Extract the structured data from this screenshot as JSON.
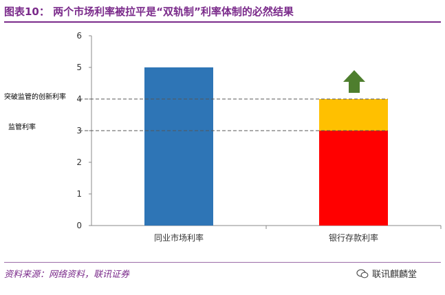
{
  "header": {
    "title": "图表10： 两个市场利率被拉平是“双轨制”利率体制的必然结果"
  },
  "footer": {
    "source": "资料来源：网络资料，联讯证券",
    "watermark": "联讯麒麟堂"
  },
  "colors": {
    "title": "#7a2a8a",
    "bar_market": "#2e75b6",
    "bar_deposit_base": "#ff0000",
    "bar_deposit_top": "#ffc000",
    "arrow": "#4e7e2e"
  },
  "chart_data": {
    "type": "bar",
    "categories": [
      "同业市场利率",
      "银行存款利率"
    ],
    "series": [
      {
        "values": [
          5,
          3
        ]
      },
      {
        "values": [
          0,
          1
        ]
      }
    ],
    "stacked": true,
    "ylim": [
      0,
      6
    ],
    "yticks": [
      0,
      1,
      2,
      3,
      4,
      5,
      6
    ],
    "title": "",
    "xlabel": "",
    "ylabel": "",
    "reference_lines": [
      {
        "label": "突破监管的创新利率",
        "y": 4
      },
      {
        "label": "监管利率",
        "y": 3
      }
    ],
    "annotation": "up-arrow",
    "grid": false,
    "legend": "none"
  }
}
